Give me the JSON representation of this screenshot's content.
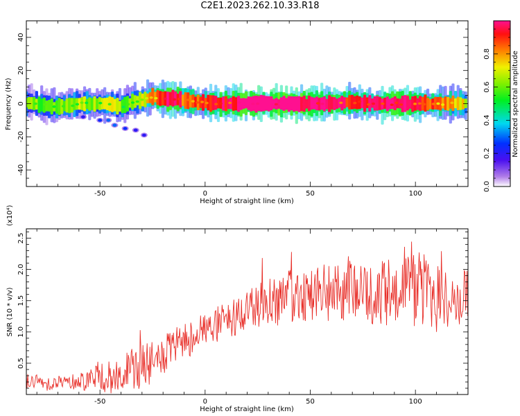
{
  "title": "C2E1.2023.262.10.33.R18",
  "colors": {
    "snr_line": "#e8302a",
    "axis": "#000000"
  },
  "chart_data": [
    {
      "type": "heatmap",
      "xlabel": "Height of straight line (km)",
      "ylabel": "Frequency (Hz)",
      "xlim": [
        -85,
        125
      ],
      "ylim": [
        -50,
        50
      ],
      "x_ticks": [
        "-50",
        "0",
        "50",
        "100"
      ],
      "y_ticks": [
        "-40",
        "-20",
        "0",
        "20",
        "40"
      ],
      "colorbar": {
        "label": "Normalized spectral amplitude",
        "range": [
          0.0,
          1.0
        ],
        "ticks": [
          "0.0",
          "0.2",
          "0.4",
          "0.6",
          "0.8"
        ],
        "colormap": "rainbow (white-violet-blue-cyan-green-yellow-red-magenta)"
      },
      "main_trace": {
        "description": "Doppler trace near 0 Hz across the full height range",
        "x": [
          -85,
          -70,
          -60,
          -50,
          -45,
          -40,
          -35,
          -30,
          -25,
          -20,
          -15,
          -10,
          0,
          10,
          20,
          30,
          40,
          50,
          60,
          70,
          80,
          90,
          100,
          110,
          125
        ],
        "freq": [
          0.5,
          -2,
          0,
          0,
          0,
          -2,
          1,
          2,
          4,
          3,
          3,
          2,
          0.5,
          0,
          0,
          0,
          0,
          0,
          0,
          1,
          0,
          0,
          0,
          0,
          0
        ],
        "amplitude": [
          0.5,
          0.5,
          0.55,
          0.55,
          0.6,
          0.5,
          0.55,
          0.6,
          0.7,
          0.85,
          0.9,
          0.75,
          0.8,
          0.85,
          0.95,
          0.95,
          0.95,
          0.9,
          0.9,
          0.8,
          0.85,
          0.9,
          0.85,
          0.75,
          0.6
        ]
      },
      "secondary_trace": {
        "description": "faint descending branch at negative heights",
        "x": [
          -58,
          -50,
          -46,
          -43,
          -38,
          -33,
          -29
        ],
        "freq": [
          -8,
          -10,
          -10,
          -13,
          -15,
          -16,
          -19
        ],
        "amplitude": [
          0.2,
          0.25,
          0.3,
          0.3,
          0.25,
          0.2,
          0.2
        ]
      }
    },
    {
      "type": "line",
      "xlabel": "Height of straight line (km)",
      "ylabel": "SNR (10 * v/v)",
      "y_unit_label": "(x10⁴)",
      "xlim": [
        -85,
        125
      ],
      "ylim": [
        0,
        2.65
      ],
      "x_ticks": [
        "-50",
        "0",
        "50",
        "100"
      ],
      "y_ticks": [
        "0.5",
        "1.0",
        "1.5",
        "2.0",
        "2.5"
      ],
      "series": [
        {
          "x": [
            -85,
            -80,
            -75,
            -70,
            -65,
            -60,
            -55,
            -50,
            -45,
            -40,
            -35,
            -30,
            -25,
            -20,
            -15,
            -10,
            -5,
            0,
            5,
            10,
            15,
            20,
            25,
            30,
            35,
            40,
            45,
            50,
            55,
            60,
            65,
            70,
            75,
            80,
            85,
            90,
            95,
            100,
            105,
            110,
            115,
            120,
            125
          ],
          "values": [
            0.22,
            0.2,
            0.18,
            0.2,
            0.2,
            0.22,
            0.25,
            0.3,
            0.25,
            0.3,
            0.4,
            0.45,
            0.5,
            0.6,
            0.75,
            0.85,
            0.95,
            1.05,
            1.1,
            1.15,
            1.25,
            1.35,
            1.45,
            1.5,
            1.52,
            1.55,
            1.6,
            1.62,
            1.65,
            1.6,
            1.65,
            1.7,
            1.65,
            1.55,
            1.6,
            1.7,
            1.72,
            1.65,
            1.6,
            1.55,
            1.5,
            1.5,
            1.6
          ],
          "fluctuation_amplitude": [
            0.12,
            0.12,
            0.12,
            0.12,
            0.12,
            0.15,
            0.2,
            0.25,
            0.28,
            0.3,
            0.33,
            0.35,
            0.35,
            0.33,
            0.3,
            0.3,
            0.3,
            0.3,
            0.3,
            0.32,
            0.35,
            0.35,
            0.38,
            0.4,
            0.42,
            0.45,
            0.45,
            0.45,
            0.45,
            0.48,
            0.5,
            0.55,
            0.55,
            0.55,
            0.55,
            0.55,
            0.58,
            0.6,
            0.58,
            0.55,
            0.5,
            0.45,
            0.4
          ]
        }
      ]
    }
  ]
}
